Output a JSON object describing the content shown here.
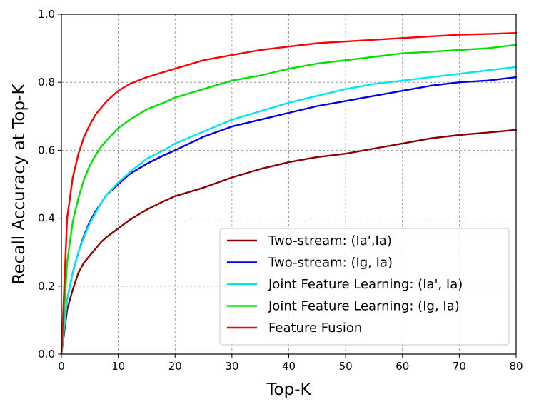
{
  "chart_data": {
    "type": "line",
    "title": "",
    "xlabel": "Top-K",
    "ylabel": "Recall Accuracy at Top-K",
    "xlim": [
      0,
      80
    ],
    "ylim": [
      0.0,
      1.0
    ],
    "xticks": [
      0,
      10,
      20,
      30,
      40,
      50,
      60,
      70,
      80
    ],
    "yticks": [
      0.0,
      0.2,
      0.4,
      0.6,
      0.8,
      1.0
    ],
    "xtick_labels": [
      "0",
      "10",
      "20",
      "30",
      "40",
      "50",
      "60",
      "70",
      "80"
    ],
    "ytick_labels": [
      "0.0",
      "0.2",
      "0.4",
      "0.6",
      "0.8",
      "1.0"
    ],
    "grid": true,
    "legend_position": "lower-right",
    "x": [
      0,
      1,
      2,
      3,
      4,
      5,
      6,
      7,
      8,
      10,
      12,
      15,
      18,
      20,
      25,
      30,
      35,
      40,
      45,
      50,
      55,
      60,
      65,
      70,
      75,
      80
    ],
    "series": [
      {
        "name": "Two-stream: (Ia',Ia)",
        "color": "#8b0000",
        "values": [
          0.0,
          0.13,
          0.19,
          0.24,
          0.27,
          0.29,
          0.31,
          0.33,
          0.345,
          0.37,
          0.395,
          0.425,
          0.45,
          0.465,
          0.49,
          0.52,
          0.545,
          0.565,
          0.58,
          0.59,
          0.605,
          0.62,
          0.635,
          0.645,
          0.652,
          0.66
        ]
      },
      {
        "name": "Two-stream: (Ig, Ia)",
        "color": "#0000e0",
        "values": [
          0.0,
          0.16,
          0.24,
          0.3,
          0.35,
          0.39,
          0.42,
          0.445,
          0.47,
          0.5,
          0.53,
          0.56,
          0.585,
          0.6,
          0.64,
          0.67,
          0.69,
          0.71,
          0.73,
          0.745,
          0.76,
          0.775,
          0.79,
          0.8,
          0.805,
          0.815
        ]
      },
      {
        "name": "Joint Feature Learning: (Ia', Ia)",
        "color": "#00e5ee",
        "values": [
          0.0,
          0.16,
          0.24,
          0.3,
          0.345,
          0.385,
          0.415,
          0.445,
          0.47,
          0.505,
          0.535,
          0.575,
          0.6,
          0.62,
          0.655,
          0.69,
          0.715,
          0.74,
          0.76,
          0.78,
          0.795,
          0.805,
          0.815,
          0.825,
          0.835,
          0.845
        ]
      },
      {
        "name": "Joint Feature Learning: (Ig, Ia)",
        "color": "#00e000",
        "values": [
          0.0,
          0.27,
          0.39,
          0.46,
          0.515,
          0.555,
          0.585,
          0.61,
          0.63,
          0.665,
          0.69,
          0.72,
          0.74,
          0.755,
          0.78,
          0.805,
          0.82,
          0.84,
          0.855,
          0.865,
          0.875,
          0.885,
          0.89,
          0.895,
          0.9,
          0.91
        ]
      },
      {
        "name": "Feature Fusion",
        "color": "#ff0000",
        "values": [
          0.0,
          0.4,
          0.52,
          0.59,
          0.64,
          0.675,
          0.705,
          0.725,
          0.745,
          0.775,
          0.795,
          0.815,
          0.83,
          0.84,
          0.865,
          0.88,
          0.895,
          0.905,
          0.915,
          0.92,
          0.925,
          0.93,
          0.935,
          0.94,
          0.942,
          0.945
        ]
      }
    ]
  }
}
